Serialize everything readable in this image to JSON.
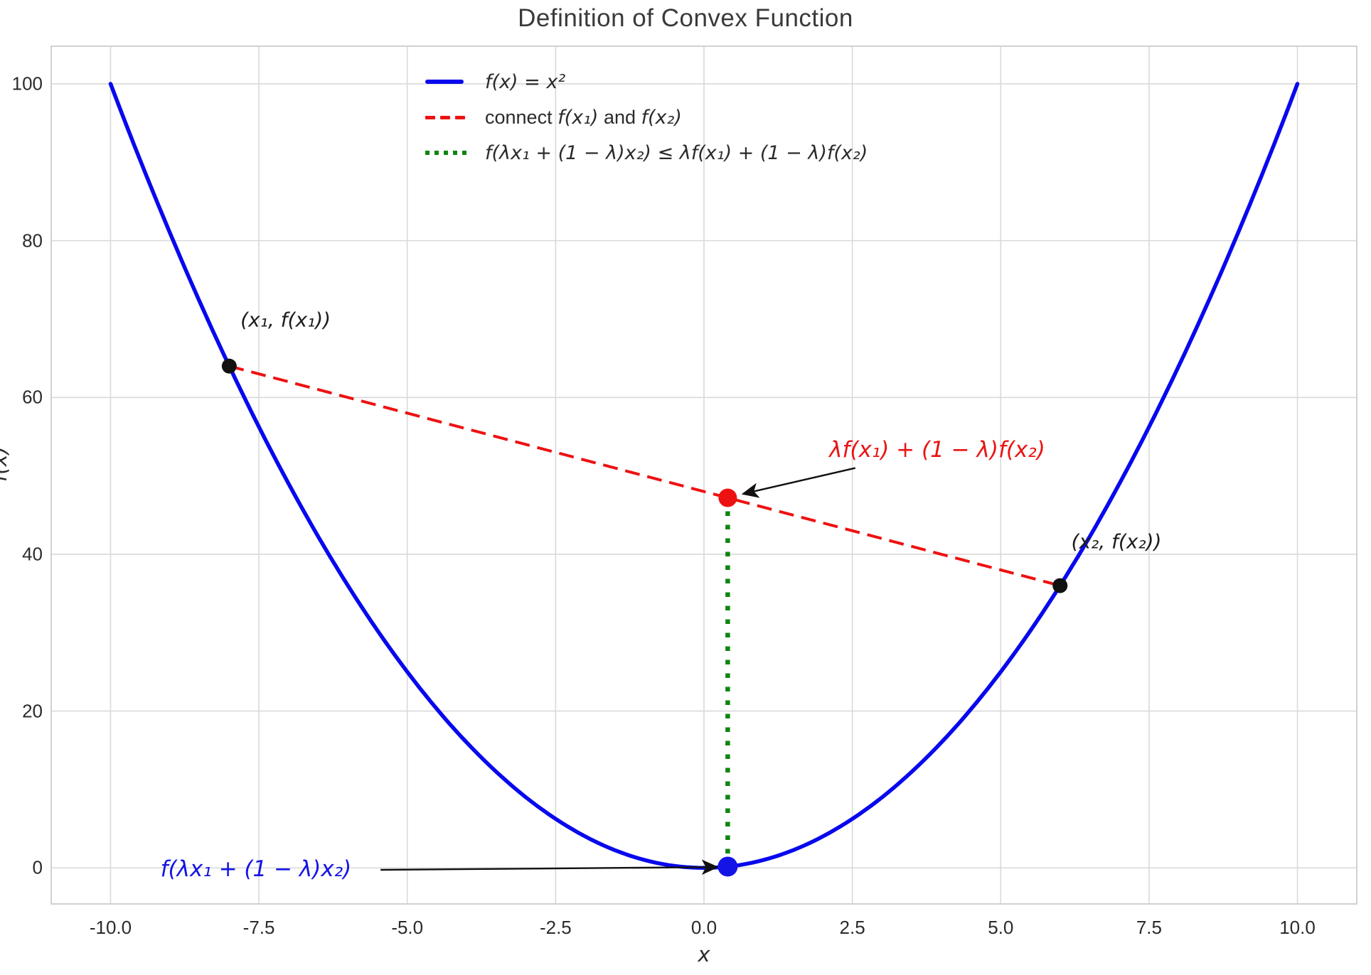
{
  "chart_data": {
    "type": "line",
    "title": "Definition of Convex Function",
    "xlabel": "x",
    "ylabel": "f(x)",
    "xlim": [
      -11,
      11
    ],
    "ylim": [
      -4.6,
      104.8
    ],
    "grid": true,
    "xticks": [
      -10,
      -7.5,
      -5,
      -2.5,
      0,
      2.5,
      5,
      7.5,
      10
    ],
    "xtick_labels": [
      "-10.0",
      "-7.5",
      "-5.0",
      "-2.5",
      "0.0",
      "2.5",
      "5.0",
      "7.5",
      "10.0"
    ],
    "yticks": [
      0,
      20,
      40,
      60,
      80,
      100
    ],
    "ytick_labels": [
      "0",
      "20",
      "40",
      "60",
      "80",
      "100"
    ],
    "legend_position": "upper center",
    "key_values": {
      "x1": -8,
      "f_x1": 64,
      "x2": 6,
      "f_x2": 36,
      "lambda": 0.4,
      "combo_x": 0.4,
      "chord_y": 47.2,
      "curve_y": 0.16
    },
    "series": [
      {
        "name": "f(x) = x²",
        "kind": "function",
        "expr": "x^2",
        "x_min": -10,
        "x_max": 10,
        "color": "#0808ee",
        "style": "solid",
        "width": 5.5
      },
      {
        "name": "connect f(x₁) and f(x₂)",
        "kind": "segment",
        "x": [
          -8,
          6
        ],
        "y": [
          64,
          36
        ],
        "color": "#ee1111",
        "style": "dashed",
        "width": 4
      },
      {
        "name": "f(λx₁ + (1 − λ)x₂) ≤ λf(x₁) + (1 − λ)f(x₂)",
        "kind": "segment",
        "x": [
          0.4,
          0.4
        ],
        "y": [
          47.2,
          0.16
        ],
        "color": "#0f850f",
        "style": "dotted",
        "width": 6.5
      }
    ],
    "points": [
      {
        "x": -8,
        "y": 64,
        "color": "#111111",
        "r": 10.5,
        "name": "point-x1"
      },
      {
        "x": 6,
        "y": 36,
        "color": "#111111",
        "r": 10.5,
        "name": "point-x2"
      },
      {
        "x": 0.4,
        "y": 47.2,
        "color": "#ee1111",
        "r": 13,
        "name": "point-chord-value"
      },
      {
        "x": 0.4,
        "y": 0.16,
        "color": "#1414e6",
        "r": 14,
        "name": "point-function-value"
      }
    ],
    "annotations": [
      {
        "text": "(x₁, f(x₁))",
        "x": -7.05,
        "y": 69.9,
        "color": "#1c1c1c",
        "size": 28
      },
      {
        "text": "(x₂, f(x₂))",
        "x": 6.95,
        "y": 41.6,
        "color": "#1c1c1c",
        "size": 28
      },
      {
        "text": "λf(x₁) + (1 − λ)f(x₂)",
        "x": 3.93,
        "y": 53.3,
        "color": "#e91414",
        "size": 31
      },
      {
        "text": "f(λx₁ + (1 − λ)x₂)",
        "x": -7.55,
        "y": -0.15,
        "color": "#1414e6",
        "size": 31
      }
    ],
    "arrows": [
      {
        "from": [
          2.55,
          51.0
        ],
        "to": [
          0.66,
          47.7
        ]
      },
      {
        "from": [
          -5.45,
          -0.25
        ],
        "to": [
          0.22,
          0.1
        ]
      }
    ]
  },
  "legend": {
    "items": [
      {
        "style": "solid",
        "color": "#0808ee",
        "parts": [
          {
            "t": "f(x) = x²",
            "it": true
          }
        ]
      },
      {
        "style": "dashed",
        "color": "#ee1111",
        "parts": [
          {
            "t": "connect ",
            "it": false
          },
          {
            "t": "f(x₁)",
            "it": true
          },
          {
            "t": " and ",
            "it": false
          },
          {
            "t": "f(x₂)",
            "it": true
          }
        ]
      },
      {
        "style": "dotted",
        "color": "#0f850f",
        "parts": [
          {
            "t": "f(λx₁ + (1 − λ)x₂) ≤ λf(x₁) + (1 − λ)f(x₂)",
            "it": true
          }
        ]
      }
    ]
  },
  "style": {
    "grid_color": "#d9d9d9",
    "border_color": "#cccccc",
    "arrow_color": "#111111",
    "background": "#ffffff"
  }
}
